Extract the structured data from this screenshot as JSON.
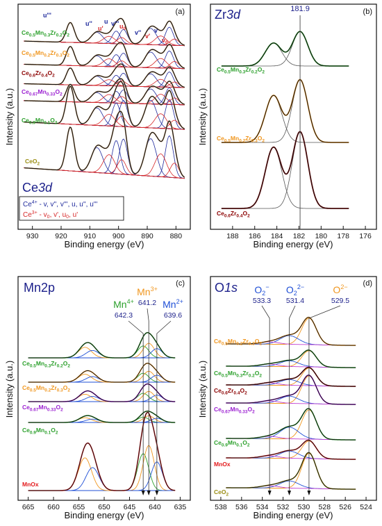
{
  "colors": {
    "frame": "#111111",
    "envelope": "#111111",
    "raw": "#c9a173",
    "title_blue": "#1b1f8a",
    "ce4": "#1f2a9c",
    "ce3": "#d62728",
    "green": "#2ca02c",
    "orange": "#f0961e",
    "darkred": "#8b0000",
    "purple": "#9b1fd1",
    "red": "#e31a1c",
    "olive": "#9a8d12",
    "blue": "#1f4fd6",
    "magenta": "#c040d0",
    "grey": "#777777"
  },
  "chart_data": [
    {
      "panel": "(a)",
      "type": "line",
      "element": "Ce3d",
      "title": "Ce3d",
      "xlabel": "Binding energy (eV)",
      "ylabel": "Intensity (a.u.)",
      "xlim": [
        935,
        875
      ],
      "x_ticks": [
        930,
        920,
        910,
        900,
        890,
        880
      ],
      "x_reversed": true,
      "grid": false,
      "peak_labels": [
        {
          "name": "u'''",
          "x": 916.8,
          "color": "#1f2a9c"
        },
        {
          "name": "u''",
          "x": 907.5,
          "color": "#1f2a9c"
        },
        {
          "name": "u'",
          "x": 903.3,
          "color": "#d62728"
        },
        {
          "name": "u",
          "x": 900.8,
          "color": "#1f2a9c"
        },
        {
          "name": "v'''",
          "x": 898.3,
          "color": "#1f2a9c"
        },
        {
          "name": "u0",
          "x": 895.0,
          "color": "#d62728"
        },
        {
          "name": "v''",
          "x": 888.8,
          "color": "#1f2a9c"
        },
        {
          "name": "v'",
          "x": 885.3,
          "color": "#d62728"
        },
        {
          "name": "v",
          "x": 882.3,
          "color": "#1f2a9c"
        },
        {
          "name": "v0",
          "x": 880.5,
          "color": "#d62728"
        }
      ],
      "legend": {
        "ce4_label": "Ce4+ - v, v'', v''', u, u'', u'''",
        "ce3_label": "Ce3+ - v0, v', u0, u'",
        "placement": "bottom-left"
      },
      "peaks": [
        {
          "be": 882.3,
          "w": 1.4,
          "type": "ce4"
        },
        {
          "be": 888.8,
          "w": 2.0,
          "type": "ce4"
        },
        {
          "be": 898.3,
          "w": 1.4,
          "type": "ce4"
        },
        {
          "be": 900.8,
          "w": 1.4,
          "type": "ce4"
        },
        {
          "be": 907.5,
          "w": 2.0,
          "type": "ce4"
        },
        {
          "be": 916.8,
          "w": 1.4,
          "type": "ce4"
        },
        {
          "be": 880.5,
          "w": 1.5,
          "type": "ce3"
        },
        {
          "be": 885.3,
          "w": 2.0,
          "type": "ce3"
        },
        {
          "be": 898.9,
          "w": 1.5,
          "type": "ce3"
        },
        {
          "be": 903.3,
          "w": 2.0,
          "type": "ce3"
        }
      ],
      "series": [
        {
          "name": "Ce0.5Mn0.3Zr0.2O2",
          "color": "#2ca02c",
          "amps": [
            1,
            0.9,
            0.8,
            0.7,
            0.6,
            1.1,
            0.35,
            0.5,
            0.35,
            0.4
          ]
        },
        {
          "name": "Ce0.5Mn0.2Zr0.3O2",
          "color": "#f0961e",
          "amps": [
            1,
            0.9,
            0.8,
            0.7,
            0.6,
            1.1,
            0.4,
            0.55,
            0.35,
            0.45
          ]
        },
        {
          "name": "Ce0.6Zr0.4O2",
          "color": "#8b0000",
          "amps": [
            1,
            0.85,
            0.85,
            0.7,
            0.6,
            1.1,
            0.35,
            0.5,
            0.35,
            0.4
          ]
        },
        {
          "name": "Ce0.67Mn0.33O2",
          "color": "#9b1fd1",
          "amps": [
            1,
            0.9,
            0.8,
            0.7,
            0.6,
            1.05,
            0.4,
            0.6,
            0.4,
            0.5
          ]
        },
        {
          "name": "Ce0.9Mn0.1O2",
          "color": "#2ca02c",
          "amps": [
            1,
            0.95,
            0.9,
            0.8,
            0.6,
            1.3,
            0.3,
            0.5,
            0.35,
            0.4
          ]
        },
        {
          "name": "CeO2",
          "color": "#9a8d12",
          "amps": [
            1,
            0.9,
            0.85,
            0.8,
            0.6,
            1.05,
            0.35,
            0.55,
            0.35,
            0.45
          ]
        }
      ]
    },
    {
      "panel": "(b)",
      "type": "line",
      "element": "Zr3d",
      "title": "Zr3d",
      "xlabel": "Binding energy (eV)",
      "ylabel": "Intensity (a.u.)",
      "xlim": [
        190,
        175
      ],
      "x_ticks": [
        188,
        186,
        184,
        182,
        180,
        178,
        176
      ],
      "x_reversed": true,
      "grid": false,
      "reference_be": 181.9,
      "reference_label": "181.9",
      "peaks": [
        {
          "be": 184.3,
          "w": 0.75
        },
        {
          "be": 181.9,
          "w": 0.7
        }
      ],
      "series": [
        {
          "name": "Ce0.5Mn0.3Zr0.2O2",
          "color": "#2ca02c",
          "amps": [
            0.6,
            0.9
          ]
        },
        {
          "name": "Ce0.5Mn0.2Zr0.3O2",
          "color": "#f0961e",
          "amps": [
            0.75,
            1.0
          ]
        },
        {
          "name": "Ce0.6Zr0.4O2",
          "color": "#8b0000",
          "amps": [
            0.8,
            1.0
          ]
        }
      ]
    },
    {
      "panel": "(c)",
      "type": "line",
      "element": "Mn2p",
      "title": "Mn2p",
      "xlabel": "Binding energy (eV)",
      "ylabel": "Intensity (a.u.)",
      "xlim": [
        667,
        633
      ],
      "x_ticks": [
        665,
        660,
        655,
        650,
        645,
        640,
        635
      ],
      "x_reversed": true,
      "grid": false,
      "reference_lines": [
        {
          "ion": "Mn4+",
          "be": 642.3,
          "label": "642.3",
          "color": "#2ca02c"
        },
        {
          "ion": "Mn3+",
          "be": 641.2,
          "label": "641.2",
          "color": "#f0961e"
        },
        {
          "ion": "Mn2+",
          "be": 639.6,
          "label": "639.6",
          "color": "#1f4fd6"
        }
      ],
      "series": [
        {
          "name": "Ce0.5Mn0.3Zr0.2O2",
          "color": "#2ca02c",
          "scale": 1.0
        },
        {
          "name": "Ce0.5Mn0.2Zr0.3O2",
          "color": "#f0961e",
          "scale": 0.75
        },
        {
          "name": "Ce0.67Mn0.33O2",
          "color": "#9b1fd1",
          "scale": 0.7
        },
        {
          "name": "Ce0.9Mn0.1O2",
          "color": "#2ca02c",
          "scale": 0.45
        },
        {
          "name": "MnOx",
          "color": "#e31a1c",
          "scale": 3.1
        }
      ]
    },
    {
      "panel": "(d)",
      "type": "line",
      "element": "O1s",
      "title": "O1s",
      "xlabel": "Binding energy (eV)",
      "ylabel": "Intensity (a.u.)",
      "xlim": [
        539,
        523
      ],
      "x_ticks": [
        538,
        536,
        534,
        532,
        530,
        528,
        526,
        524
      ],
      "x_reversed": true,
      "grid": false,
      "reference_lines": [
        {
          "species": "O2-",
          "be": 533.3,
          "label": "533.3",
          "color": "#1f4fd6"
        },
        {
          "species": "O2 2-",
          "be": 531.4,
          "label": "531.4",
          "color": "#1f4fd6"
        },
        {
          "species": "O2-",
          "be": 529.5,
          "label": "529.5",
          "color": "#f0961e"
        }
      ],
      "series": [
        {
          "name": "Ce0.5Mn0.2Zr0.3O2",
          "color": "#f0961e"
        },
        {
          "name": "Ce0.5Mn0.3Zr0.2O2",
          "color": "#2ca02c"
        },
        {
          "name": "Ce0.6Zr0.4O2",
          "color": "#8b0000"
        },
        {
          "name": "Ce0.67Mn0.33O2",
          "color": "#9b1fd1"
        },
        {
          "name": "Ce0.9Mn0.1O2",
          "color": "#2ca02c"
        },
        {
          "name": "MnOx",
          "color": "#e31a1c"
        },
        {
          "name": "CeO2",
          "color": "#9a8d12"
        }
      ]
    }
  ],
  "labels": {
    "panel_a": "(a)",
    "panel_b": "(b)",
    "panel_c": "(c)",
    "panel_d": "(d)",
    "ce3d_main": "Ce",
    "ce3d_italic": "3d",
    "zr3d_main": "Zr",
    "zr3d_italic": "3d",
    "mn2p": "Mn2p",
    "o1s_main": "O",
    "o1s_italic": "1s",
    "zr_ref": "181.9",
    "mn4_ion": "Mn",
    "mn4_sup": "4+",
    "mn4_be": "642.3",
    "mn3_ion": "Mn",
    "mn3_sup": "3+",
    "mn3_be": "641.2",
    "mn2_ion": "Mn",
    "mn2_sup": "2+",
    "mn2_be": "639.6",
    "o_a_ion": "O",
    "o_a_sub": "2",
    "o_a_sup": "−",
    "o_a_be": "533.3",
    "o_b_ion": "O",
    "o_b_sub": "2",
    "o_b_sup": "2−",
    "o_b_be": "531.4",
    "o_c_ion": "O",
    "o_c_sup": "2−",
    "o_c_be": "529.5",
    "legend_ce4_ion": "Ce",
    "legend_ce4_sup": "4+",
    "legend_ce4_rest": " - v, v'', v''', u, u'', u'''",
    "legend_ce3_ion": "Ce",
    "legend_ce3_sup": "3+",
    "legend_ce3_rest_a": " - v",
    "legend_ce3_sub0a": "0",
    "legend_ce3_rest_b": ", v', u",
    "legend_ce3_sub0b": "0",
    "legend_ce3_rest_c": ", u'",
    "pk_u3": "u'''",
    "pk_u2": "u''",
    "pk_u1": "u'",
    "pk_u": "u",
    "pk_v3": "v'''",
    "pk_u0": "u",
    "pk_u0_sub": "0",
    "pk_v2": "v''",
    "pk_v1": "v'",
    "pk_v": "v",
    "pk_v0": "v",
    "pk_v0_sub": "0"
  }
}
